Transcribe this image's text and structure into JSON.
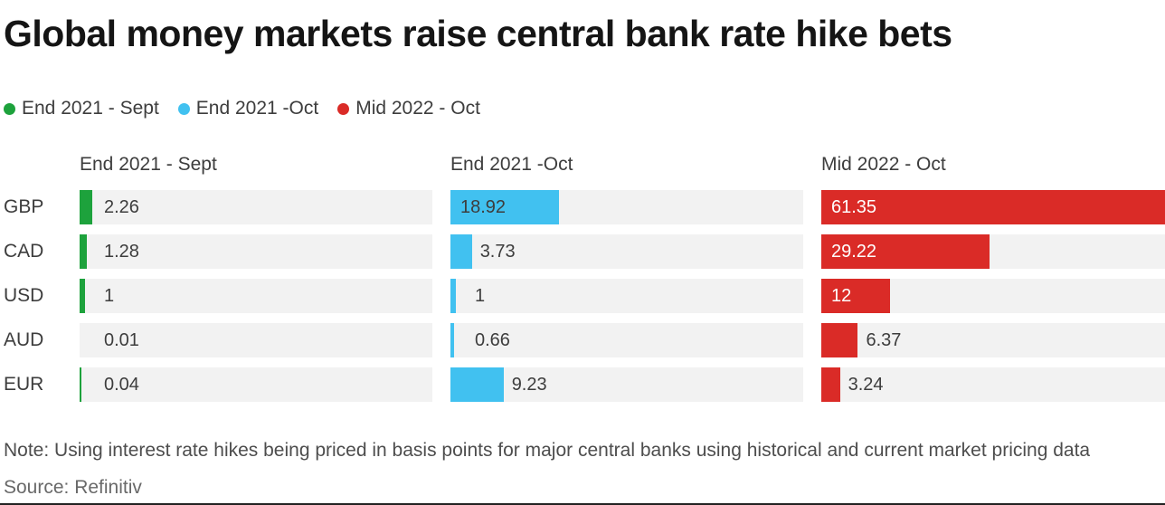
{
  "title": "Global money markets raise central bank rate hike bets",
  "note": "Note: Using interest rate hikes being priced in basis points for major central banks using historical and current market pricing data",
  "source": "Source: Refinitiv",
  "colors": {
    "track": "#f2f2f2",
    "value_label": "#3d3d3d",
    "title_text": "#151515",
    "bottom_rule": "#222222"
  },
  "chart_data": {
    "type": "bar",
    "orientation": "horizontal",
    "title": "Global money markets raise central bank rate hike bets",
    "categories": [
      "GBP",
      "CAD",
      "USD",
      "AUD",
      "EUR"
    ],
    "series": [
      {
        "name": "End 2021 - Sept",
        "color": "#1da23c",
        "inside_label_color": "#3d3d3d",
        "values": [
          2.26,
          1.28,
          1,
          0.01,
          0.04
        ],
        "value_labels": [
          "2.26",
          "1.28",
          "1",
          "0.01",
          "0.04"
        ]
      },
      {
        "name": "End 2021 -Oct",
        "color": "#41c1f0",
        "inside_label_color": "#3d3d3d",
        "values": [
          18.92,
          3.73,
          1,
          0.66,
          9.23
        ],
        "value_labels": [
          "18.92",
          "3.73",
          "1",
          "0.66",
          "9.23"
        ]
      },
      {
        "name": "Mid 2022 - Oct",
        "color": "#da2b27",
        "inside_label_color": "#ffffff",
        "values": [
          61.35,
          29.22,
          12,
          6.37,
          3.24
        ],
        "value_labels": [
          "61.35",
          "29.22",
          "12",
          "6.37",
          "3.24"
        ]
      }
    ],
    "xlim": [
      0,
      61.35
    ],
    "grid": false,
    "legend_position": "top",
    "column_headers": [
      "End 2021 - Sept",
      "End 2021 -Oct",
      "Mid 2022 - Oct"
    ]
  }
}
